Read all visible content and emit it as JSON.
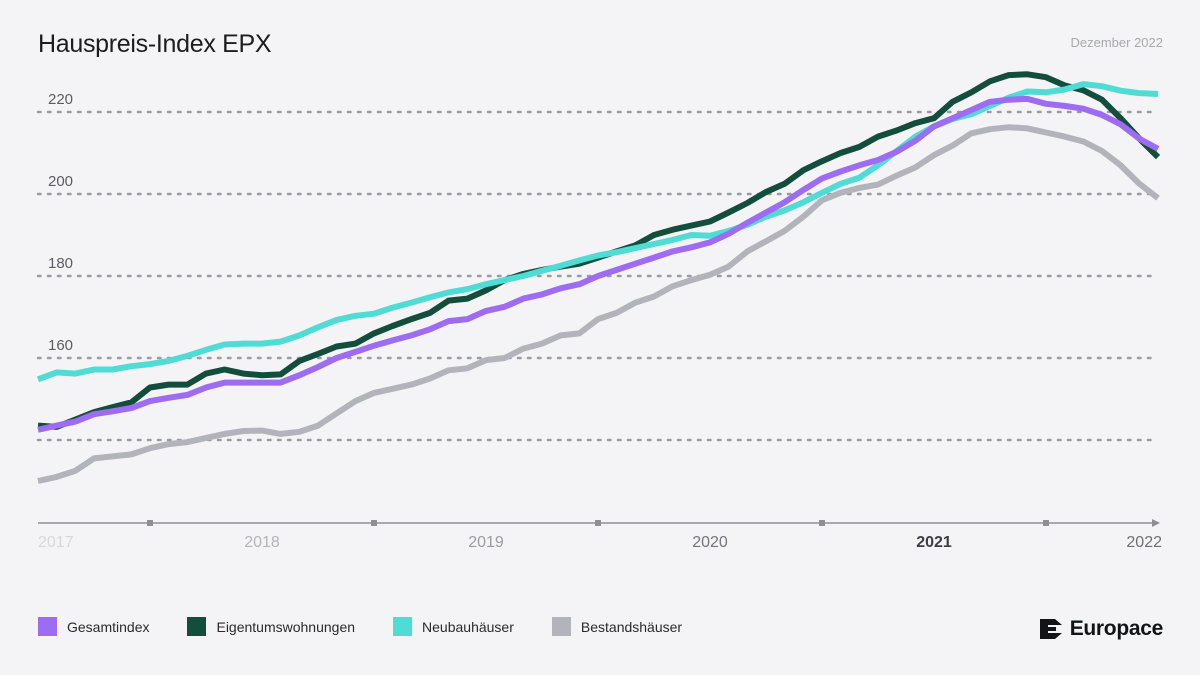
{
  "header": {
    "title": "Hauspreis-Index EPX",
    "date": "Dezember 2022"
  },
  "brand": {
    "name": "Europace",
    "logo_icon": "europace-logo-icon"
  },
  "colors": {
    "background": "#f4f4f6",
    "grid": "#9a9aa2",
    "axis": "#8e8e96",
    "tick_label": "#5c5c64"
  },
  "chart_data": {
    "type": "line",
    "title": "Hauspreis-Index EPX",
    "subtitle": "Dezember 2022",
    "xlabel": "",
    "ylabel": "",
    "x_range": [
      2017.0,
      2022.0
    ],
    "ylim": [
      125,
      228
    ],
    "yticks": [
      160,
      180,
      200,
      220
    ],
    "extra_gridlines": [
      140
    ],
    "grid": true,
    "grid_style": "dotted horizontal",
    "legend_position": "bottom",
    "x_tick_labels": [
      {
        "label": "2017",
        "x": 2017.0,
        "color": "#d6d6db"
      },
      {
        "label": "2018",
        "x": 2018.0,
        "color": "#b4b4ba"
      },
      {
        "label": "2019",
        "x": 2019.0,
        "color": "#9b9ba2"
      },
      {
        "label": "2020",
        "x": 2020.0,
        "color": "#74747c"
      },
      {
        "label": "2021",
        "x": 2021.0,
        "color": "#3d3d44"
      },
      {
        "label": "2022",
        "x": 2022.0,
        "color": "#6e6e76"
      }
    ],
    "x_minor_ticks": [
      2017.5,
      2018.5,
      2019.5,
      2020.5,
      2021.5
    ],
    "series": [
      {
        "name": "Eigentumswohnungen",
        "color": "#134e3d",
        "points": [
          [
            2017.0,
            143.5
          ],
          [
            2017.083,
            143.2
          ],
          [
            2017.167,
            145.0
          ],
          [
            2017.25,
            146.8
          ],
          [
            2017.333,
            148.0
          ],
          [
            2017.417,
            149.2
          ],
          [
            2017.5,
            152.8
          ],
          [
            2017.583,
            153.5
          ],
          [
            2017.667,
            153.5
          ],
          [
            2017.75,
            156.2
          ],
          [
            2017.833,
            157.2
          ],
          [
            2017.917,
            156.2
          ],
          [
            2018.0,
            155.8
          ],
          [
            2018.083,
            156.0
          ],
          [
            2018.167,
            159.3
          ],
          [
            2018.25,
            161.0
          ],
          [
            2018.333,
            162.8
          ],
          [
            2018.417,
            163.5
          ],
          [
            2018.5,
            166.0
          ],
          [
            2018.583,
            167.8
          ],
          [
            2018.667,
            169.5
          ],
          [
            2018.75,
            171.0
          ],
          [
            2018.833,
            174.0
          ],
          [
            2018.917,
            174.5
          ],
          [
            2019.0,
            176.5
          ],
          [
            2019.083,
            179.0
          ],
          [
            2019.167,
            180.5
          ],
          [
            2019.25,
            181.5
          ],
          [
            2019.333,
            182.3
          ],
          [
            2019.417,
            183.0
          ],
          [
            2019.5,
            184.5
          ],
          [
            2019.583,
            186.0
          ],
          [
            2019.667,
            187.5
          ],
          [
            2019.75,
            190.0
          ],
          [
            2019.833,
            191.3
          ],
          [
            2019.917,
            192.3
          ],
          [
            2020.0,
            193.3
          ],
          [
            2020.083,
            195.5
          ],
          [
            2020.167,
            197.8
          ],
          [
            2020.25,
            200.5
          ],
          [
            2020.333,
            202.5
          ],
          [
            2020.417,
            205.8
          ],
          [
            2020.5,
            208.0
          ],
          [
            2020.583,
            210.0
          ],
          [
            2020.667,
            211.5
          ],
          [
            2020.75,
            214.0
          ],
          [
            2020.833,
            215.5
          ],
          [
            2020.917,
            217.3
          ],
          [
            2021.0,
            218.5
          ],
          [
            2021.083,
            222.5
          ],
          [
            2021.167,
            224.8
          ],
          [
            2021.25,
            227.5
          ],
          [
            2021.333,
            229.0
          ],
          [
            2021.417,
            229.2
          ],
          [
            2021.5,
            228.5
          ],
          [
            2021.583,
            226.5
          ],
          [
            2021.667,
            225.3
          ],
          [
            2021.75,
            223.0
          ],
          [
            2021.833,
            218.5
          ],
          [
            2021.917,
            213.5
          ],
          [
            2022.0,
            209.0
          ]
        ]
      },
      {
        "name": "Neubauhäuser",
        "color": "#4fdcd4",
        "points": [
          [
            2017.0,
            154.8
          ],
          [
            2017.083,
            156.5
          ],
          [
            2017.167,
            156.2
          ],
          [
            2017.25,
            157.2
          ],
          [
            2017.333,
            157.2
          ],
          [
            2017.417,
            158.0
          ],
          [
            2017.5,
            158.5
          ],
          [
            2017.583,
            159.3
          ],
          [
            2017.667,
            160.5
          ],
          [
            2017.75,
            162.0
          ],
          [
            2017.833,
            163.3
          ],
          [
            2017.917,
            163.5
          ],
          [
            2018.0,
            163.5
          ],
          [
            2018.083,
            164.0
          ],
          [
            2018.167,
            165.5
          ],
          [
            2018.25,
            167.5
          ],
          [
            2018.333,
            169.3
          ],
          [
            2018.417,
            170.3
          ],
          [
            2018.5,
            170.8
          ],
          [
            2018.583,
            172.3
          ],
          [
            2018.667,
            173.5
          ],
          [
            2018.75,
            174.8
          ],
          [
            2018.833,
            176.0
          ],
          [
            2018.917,
            176.8
          ],
          [
            2019.0,
            178.0
          ],
          [
            2019.083,
            179.0
          ],
          [
            2019.167,
            180.0
          ],
          [
            2019.25,
            181.3
          ],
          [
            2019.333,
            182.5
          ],
          [
            2019.417,
            183.8
          ],
          [
            2019.5,
            185.0
          ],
          [
            2019.583,
            185.8
          ],
          [
            2019.667,
            186.8
          ],
          [
            2019.75,
            187.8
          ],
          [
            2019.833,
            188.8
          ],
          [
            2019.917,
            190.0
          ],
          [
            2020.0,
            189.8
          ],
          [
            2020.083,
            191.0
          ],
          [
            2020.167,
            192.5
          ],
          [
            2020.25,
            194.5
          ],
          [
            2020.333,
            196.0
          ],
          [
            2020.417,
            198.0
          ],
          [
            2020.5,
            200.3
          ],
          [
            2020.583,
            202.5
          ],
          [
            2020.667,
            204.0
          ],
          [
            2020.75,
            207.0
          ],
          [
            2020.833,
            210.5
          ],
          [
            2020.917,
            214.0
          ],
          [
            2021.0,
            216.5
          ],
          [
            2021.083,
            218.3
          ],
          [
            2021.167,
            219.5
          ],
          [
            2021.25,
            221.5
          ],
          [
            2021.333,
            223.5
          ],
          [
            2021.417,
            225.0
          ],
          [
            2021.5,
            224.8
          ],
          [
            2021.583,
            225.5
          ],
          [
            2021.667,
            226.8
          ],
          [
            2021.75,
            226.3
          ],
          [
            2021.833,
            225.2
          ],
          [
            2021.917,
            224.6
          ],
          [
            2022.0,
            224.4
          ]
        ]
      },
      {
        "name": "Gesamtindex",
        "color": "#9d6cf2",
        "points": [
          [
            2017.0,
            142.5
          ],
          [
            2017.083,
            143.5
          ],
          [
            2017.167,
            144.5
          ],
          [
            2017.25,
            146.3
          ],
          [
            2017.333,
            147.0
          ],
          [
            2017.417,
            147.8
          ],
          [
            2017.5,
            149.5
          ],
          [
            2017.583,
            150.3
          ],
          [
            2017.667,
            151.0
          ],
          [
            2017.75,
            152.8
          ],
          [
            2017.833,
            154.0
          ],
          [
            2017.917,
            154.0
          ],
          [
            2018.0,
            154.0
          ],
          [
            2018.083,
            154.0
          ],
          [
            2018.167,
            155.8
          ],
          [
            2018.25,
            157.8
          ],
          [
            2018.333,
            160.0
          ],
          [
            2018.417,
            161.5
          ],
          [
            2018.5,
            163.0
          ],
          [
            2018.583,
            164.3
          ],
          [
            2018.667,
            165.5
          ],
          [
            2018.75,
            167.0
          ],
          [
            2018.833,
            169.0
          ],
          [
            2018.917,
            169.5
          ],
          [
            2019.0,
            171.5
          ],
          [
            2019.083,
            172.5
          ],
          [
            2019.167,
            174.5
          ],
          [
            2019.25,
            175.5
          ],
          [
            2019.333,
            177.0
          ],
          [
            2019.417,
            178.0
          ],
          [
            2019.5,
            180.0
          ],
          [
            2019.583,
            181.5
          ],
          [
            2019.667,
            183.0
          ],
          [
            2019.75,
            184.5
          ],
          [
            2019.833,
            186.0
          ],
          [
            2019.917,
            187.0
          ],
          [
            2020.0,
            188.2
          ],
          [
            2020.083,
            190.3
          ],
          [
            2020.167,
            193.0
          ],
          [
            2020.25,
            195.5
          ],
          [
            2020.333,
            198.0
          ],
          [
            2020.417,
            201.0
          ],
          [
            2020.5,
            203.8
          ],
          [
            2020.583,
            205.5
          ],
          [
            2020.667,
            207.0
          ],
          [
            2020.75,
            208.3
          ],
          [
            2020.833,
            210.3
          ],
          [
            2020.917,
            213.0
          ],
          [
            2021.0,
            216.5
          ],
          [
            2021.083,
            218.5
          ],
          [
            2021.167,
            220.5
          ],
          [
            2021.25,
            222.5
          ],
          [
            2021.333,
            223.0
          ],
          [
            2021.417,
            223.2
          ],
          [
            2021.5,
            222.0
          ],
          [
            2021.583,
            221.5
          ],
          [
            2021.667,
            220.8
          ],
          [
            2021.75,
            219.3
          ],
          [
            2021.833,
            217.0
          ],
          [
            2021.917,
            213.5
          ],
          [
            2022.0,
            211.0
          ]
        ]
      },
      {
        "name": "Bestandshäuser",
        "color": "#b3b3bb",
        "points": [
          [
            2017.0,
            130.0
          ],
          [
            2017.083,
            131.0
          ],
          [
            2017.167,
            132.5
          ],
          [
            2017.25,
            135.5
          ],
          [
            2017.333,
            136.0
          ],
          [
            2017.417,
            136.5
          ],
          [
            2017.5,
            138.0
          ],
          [
            2017.583,
            139.0
          ],
          [
            2017.667,
            139.5
          ],
          [
            2017.75,
            140.5
          ],
          [
            2017.833,
            141.5
          ],
          [
            2017.917,
            142.2
          ],
          [
            2018.0,
            142.3
          ],
          [
            2018.083,
            141.5
          ],
          [
            2018.167,
            142.0
          ],
          [
            2018.25,
            143.5
          ],
          [
            2018.333,
            146.5
          ],
          [
            2018.417,
            149.5
          ],
          [
            2018.5,
            151.5
          ],
          [
            2018.583,
            152.5
          ],
          [
            2018.667,
            153.5
          ],
          [
            2018.75,
            155.0
          ],
          [
            2018.833,
            157.0
          ],
          [
            2018.917,
            157.5
          ],
          [
            2019.0,
            159.5
          ],
          [
            2019.083,
            160.0
          ],
          [
            2019.167,
            162.3
          ],
          [
            2019.25,
            163.5
          ],
          [
            2019.333,
            165.5
          ],
          [
            2019.417,
            166.0
          ],
          [
            2019.5,
            169.5
          ],
          [
            2019.583,
            171.0
          ],
          [
            2019.667,
            173.5
          ],
          [
            2019.75,
            175.0
          ],
          [
            2019.833,
            177.5
          ],
          [
            2019.917,
            179.0
          ],
          [
            2020.0,
            180.3
          ],
          [
            2020.083,
            182.3
          ],
          [
            2020.167,
            186.0
          ],
          [
            2020.25,
            188.5
          ],
          [
            2020.333,
            191.0
          ],
          [
            2020.417,
            194.5
          ],
          [
            2020.5,
            198.5
          ],
          [
            2020.583,
            200.3
          ],
          [
            2020.667,
            201.5
          ],
          [
            2020.75,
            202.3
          ],
          [
            2020.833,
            204.5
          ],
          [
            2020.917,
            206.5
          ],
          [
            2021.0,
            209.5
          ],
          [
            2021.083,
            211.8
          ],
          [
            2021.167,
            214.8
          ],
          [
            2021.25,
            215.8
          ],
          [
            2021.333,
            216.3
          ],
          [
            2021.417,
            216.0
          ],
          [
            2021.5,
            215.0
          ],
          [
            2021.583,
            214.0
          ],
          [
            2021.667,
            212.8
          ],
          [
            2021.75,
            210.5
          ],
          [
            2021.833,
            207.0
          ],
          [
            2021.917,
            202.5
          ],
          [
            2022.0,
            199.0
          ]
        ]
      }
    ]
  },
  "legend": {
    "items": [
      {
        "label": "Gesamtindex",
        "color": "#9d6cf2"
      },
      {
        "label": "Eigentumswohnungen",
        "color": "#134e3d"
      },
      {
        "label": "Neubauhäuser",
        "color": "#4fdcd4"
      },
      {
        "label": "Bestandshäuser",
        "color": "#b3b3bb"
      }
    ]
  }
}
